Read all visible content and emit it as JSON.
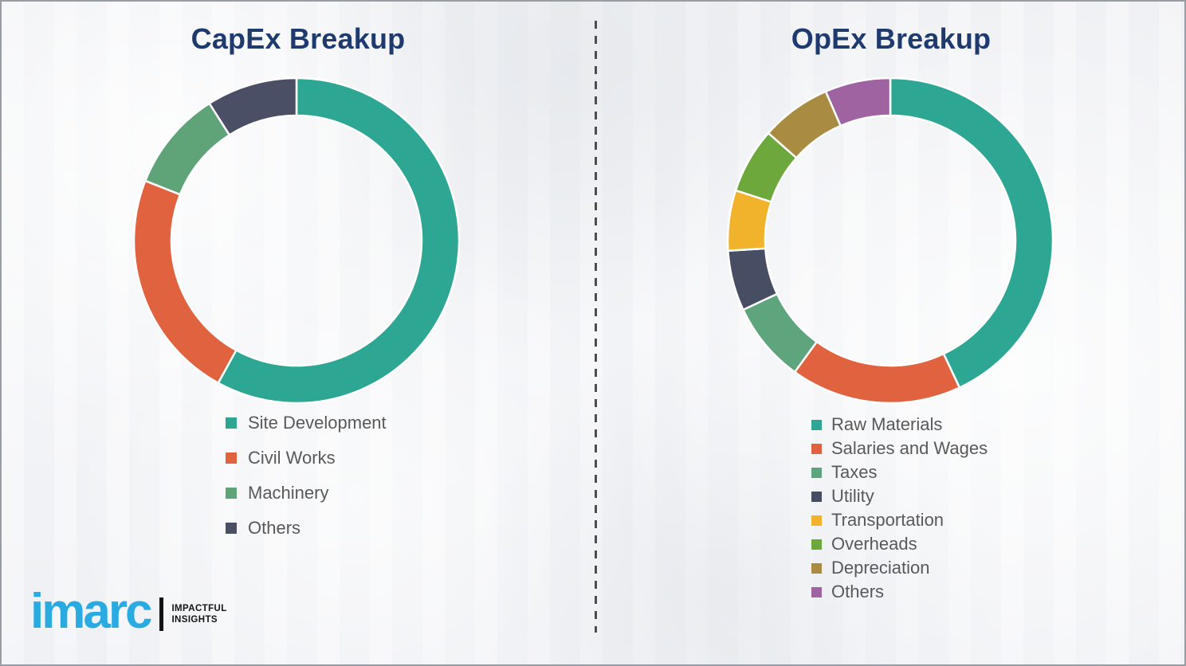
{
  "page": {
    "background_color": "#f4f5f7",
    "border_color": "#989da3",
    "divider_color": "#4d4d4d",
    "legend_text_color": "#595959",
    "title_color": "#1f3a6e",
    "segment_gap_color": "#ffffff"
  },
  "chart_data": [
    {
      "type": "pie",
      "shape": "donut",
      "title": "CapEx Breakup",
      "categories": [
        "Site Development",
        "Civil Works",
        "Machinery",
        "Others"
      ],
      "values": [
        58,
        23,
        10,
        9
      ],
      "colors": [
        "#2ea694",
        "#e0623f",
        "#5ea478",
        "#4a4f66"
      ],
      "legend_position": "below-left",
      "start": "12-oclock",
      "direction": "clockwise",
      "data_labels": false
    },
    {
      "type": "pie",
      "shape": "donut",
      "title": "OpEx Breakup",
      "categories": [
        "Raw Materials",
        "Salaries and Wages",
        "Taxes",
        "Utility",
        "Transportation",
        "Overheads",
        "Depreciation",
        "Others"
      ],
      "values": [
        43,
        17,
        8,
        6,
        6,
        6.5,
        7,
        6.5
      ],
      "colors": [
        "#2ea694",
        "#e0623f",
        "#5ea47d",
        "#474e63",
        "#f2b32c",
        "#6ca83b",
        "#a98c41",
        "#9f63a2"
      ],
      "legend_position": "below-left",
      "start": "12-oclock",
      "direction": "clockwise",
      "data_labels": false
    }
  ],
  "logo": {
    "brand": "imarc",
    "brand_color": "#29abe2",
    "bar_color": "#141414",
    "tagline_line1": "IMPACTFUL",
    "tagline_line2": "INSIGHTS",
    "tagline_color": "#141414"
  }
}
